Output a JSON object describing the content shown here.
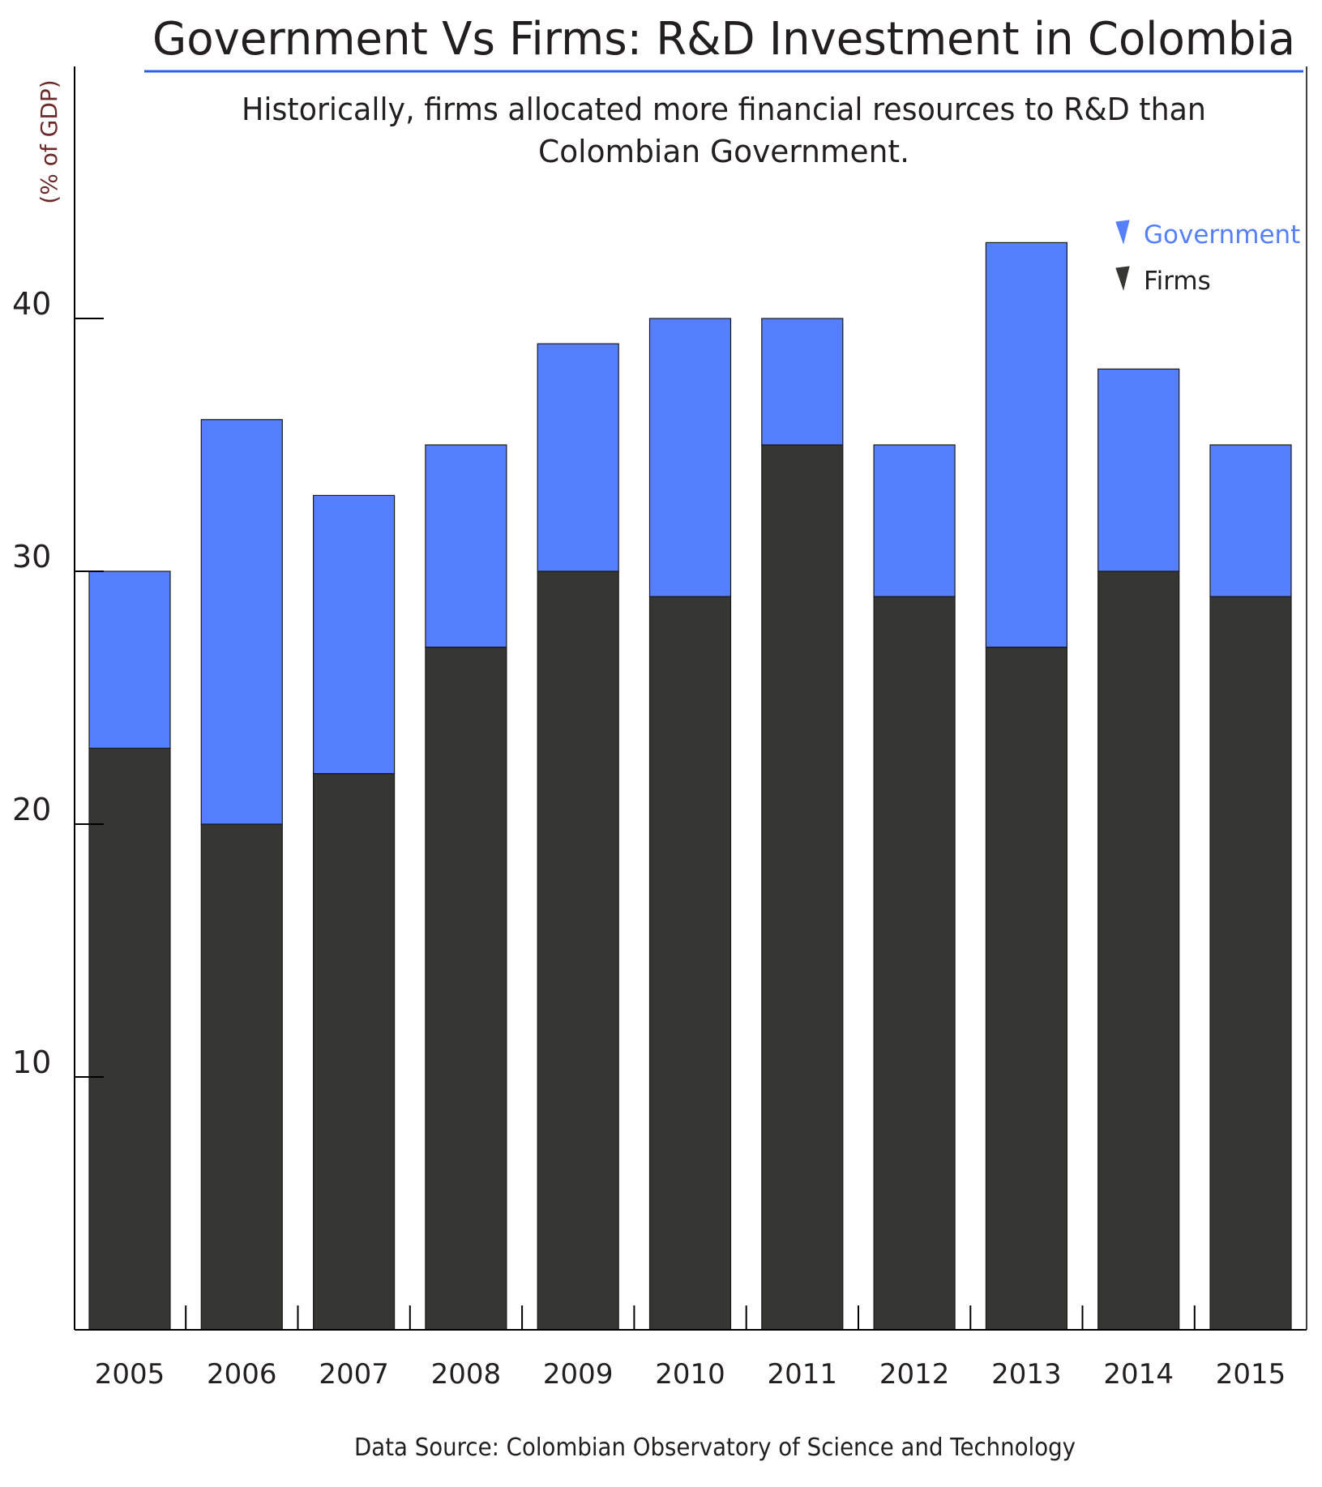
{
  "chart_data": {
    "type": "bar",
    "stacked": true,
    "title": "Government Vs Firms: R&D Investment in Colombia",
    "subtitle_lines": [
      "Historically, firms allocated more financial resources to R&D than",
      "Colombian Government."
    ],
    "ylabel": "(% of GDP)",
    "source": "Data Source: Colombian Observatory of Science and Technology",
    "categories": [
      "2005",
      "2006",
      "2007",
      "2008",
      "2009",
      "2010",
      "2011",
      "2012",
      "2013",
      "2014",
      "2015"
    ],
    "series": [
      {
        "name": "Firms",
        "color": "#363632",
        "values": [
          23,
          20,
          22,
          27,
          30,
          29,
          35,
          29,
          27,
          30,
          29
        ]
      },
      {
        "name": "Government",
        "color": "#557ffd",
        "values": [
          7,
          16,
          11,
          8,
          9,
          11,
          5,
          6,
          16,
          8,
          6
        ]
      }
    ],
    "legend_order": [
      "Government",
      "Firms"
    ],
    "legend_position": "top-right",
    "yticks": [
      10,
      20,
      30,
      40
    ],
    "ylim": [
      0,
      45
    ],
    "grid": false,
    "colors": {
      "title_underline": "#2b5ee8",
      "ylabel": "#6b2a2a",
      "axis": "#000000"
    }
  }
}
